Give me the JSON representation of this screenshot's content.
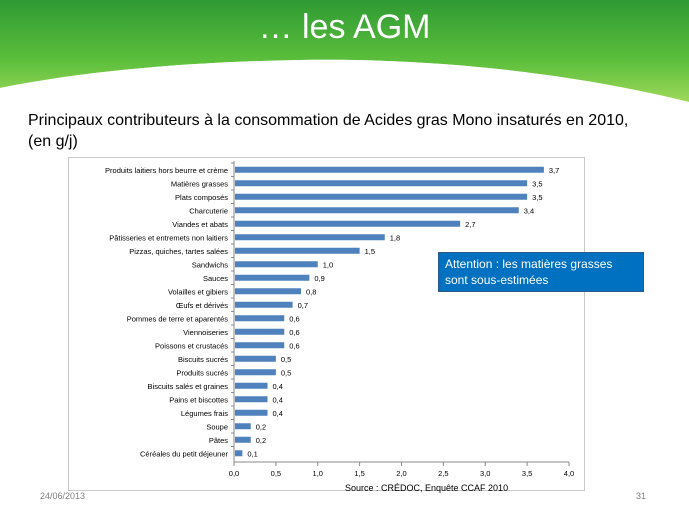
{
  "slide": {
    "title": "… les AGM",
    "subtitle": "Principaux contributeurs à la consommation de Acides gras Mono insaturés en 2010,\n (en g/j)",
    "note": "Attention : les matières grasses sont sous-estimées",
    "source": "Source : CRÉDOC, Enquête  CCAF 2010",
    "date": "24/06/2013",
    "page_number": "31"
  },
  "colors": {
    "bar": "#4f81bd",
    "header_green_dark": "#3aa335",
    "header_green_light": "#8fd14f",
    "note_bg": "#0070c0"
  },
  "chart_data": {
    "type": "bar",
    "orientation": "horizontal",
    "categories": [
      "Produits laitiers hors beurre et crème",
      "Matières grasses",
      "Plats composés",
      "Charcuterie",
      "Viandes et abats",
      "Pâtisseries et entremets non laitiers",
      "Pizzas, quiches, tartes salées",
      "Sandwichs",
      "Sauces",
      "Volailles et gibiers",
      "Œufs et dérivés",
      "Pommes de terre et aparentés",
      "Viennoiseries",
      "Poissons et crustacés",
      "Biscuits sucrés",
      "Produits sucrés",
      "Biscuits salés et graines",
      "Pains et biscottes",
      "Légumes frais",
      "Soupe",
      "Pâtes",
      "Céréales du petit déjeuner"
    ],
    "values": [
      3.7,
      3.5,
      3.5,
      3.4,
      2.7,
      1.8,
      1.5,
      1.0,
      0.9,
      0.8,
      0.7,
      0.6,
      0.6,
      0.6,
      0.5,
      0.5,
      0.4,
      0.4,
      0.4,
      0.2,
      0.2,
      0.1
    ],
    "value_labels": [
      "3,7",
      "3,5",
      "3,5",
      "3,4",
      "2,7",
      "1,8",
      "1,5",
      "1,0",
      "0,9",
      "0,8",
      "0,7",
      "0,6",
      "0,6",
      "0,6",
      "0,5",
      "0,5",
      "0,4",
      "0,4",
      "0,4",
      "0,2",
      "0,2",
      "0,1"
    ],
    "xlim": [
      0,
      4.0
    ],
    "x_ticks": [
      0,
      0.5,
      1.0,
      1.5,
      2.0,
      2.5,
      3.0,
      3.5,
      4.0
    ],
    "x_tick_labels": [
      "0,0",
      "0,5",
      "1,0",
      "1,5",
      "2,0",
      "2,5",
      "3,0",
      "3,5",
      "4,0"
    ],
    "grid": false
  }
}
